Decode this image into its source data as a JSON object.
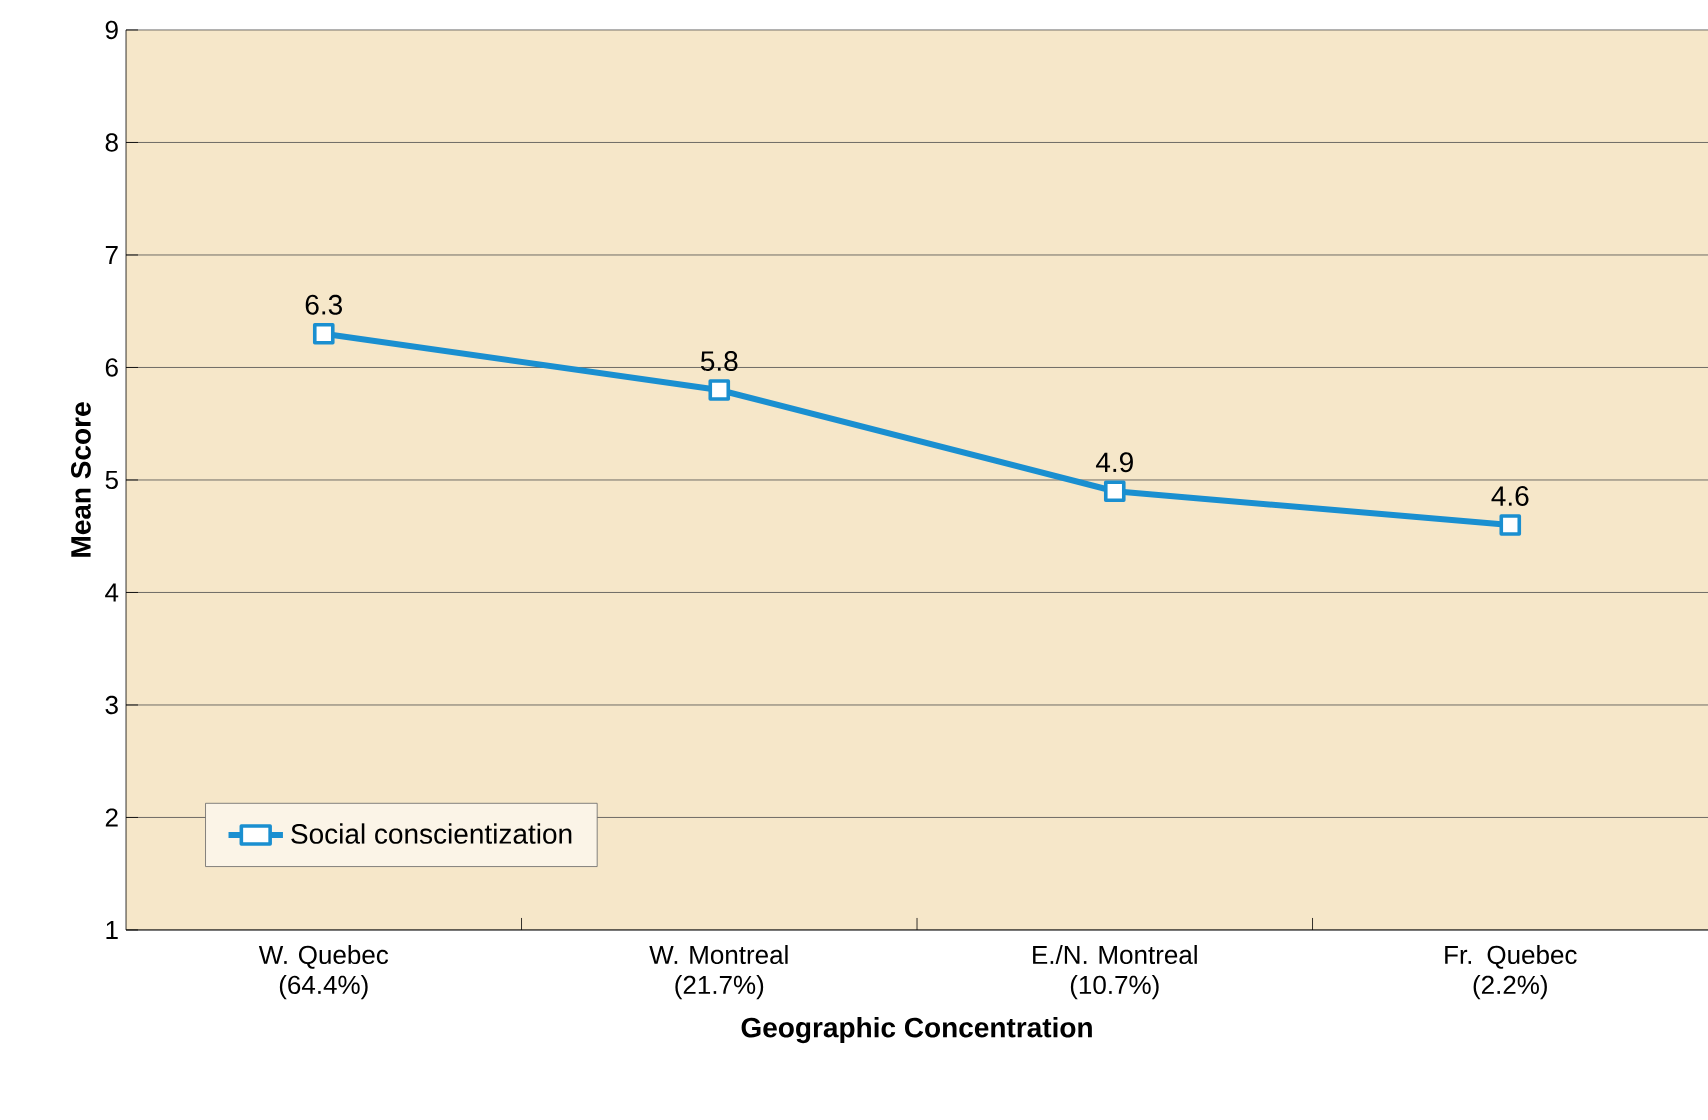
{
  "chart_data": {
    "type": "line",
    "xlabel": "Geographic Concentration",
    "ylabel": "Mean Score",
    "categories": [
      "W. Quebec (64.4%)",
      "W. Montreal (21.7%)",
      "E./N. Montreal (10.7%)",
      "Fr. Quebec (2.2%)"
    ],
    "series": [
      {
        "name": "Social conscientization",
        "color": "#1a8fd0",
        "values": [
          6.3,
          5.8,
          4.9,
          4.6
        ]
      }
    ],
    "ylim": [
      1,
      9
    ],
    "yticks": [
      1,
      2,
      3,
      4,
      5,
      6,
      7,
      8,
      9
    ],
    "grid": "y",
    "legend": "bottom left",
    "marker": "square",
    "line_style": "solid",
    "data_labels": true
  }
}
